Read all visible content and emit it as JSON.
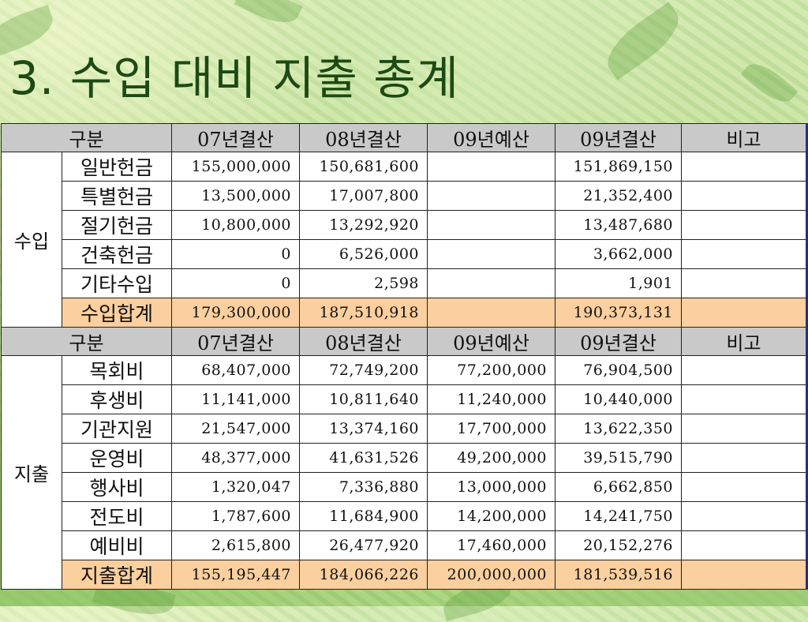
{
  "title": "3. 수입 대비 지출 총계",
  "header": [
    "구분",
    "07년결산",
    "08년결산",
    "09년예산",
    "09년결산",
    "비고"
  ],
  "income": {
    "group_label": "수입",
    "rows": [
      {
        "label": "일반헌금",
        "v07": "155,000,000",
        "v08": "150,681,600",
        "b09": "",
        "v09": "151,869,150",
        "note": ""
      },
      {
        "label": "특별헌금",
        "v07": "13,500,000",
        "v08": "17,007,800",
        "b09": "",
        "v09": "21,352,400",
        "note": ""
      },
      {
        "label": "절기헌금",
        "v07": "10,800,000",
        "v08": "13,292,920",
        "b09": "",
        "v09": "13,487,680",
        "note": ""
      },
      {
        "label": "건축헌금",
        "v07": "0",
        "v08": "6,526,000",
        "b09": "",
        "v09": "3,662,000",
        "note": ""
      },
      {
        "label": "기타수입",
        "v07": "0",
        "v08": "2,598",
        "b09": "",
        "v09": "1,901",
        "note": ""
      }
    ],
    "total": {
      "label": "수입합계",
      "v07": "179,300,000",
      "v08": "187,510,918",
      "b09": "",
      "v09": "190,373,131",
      "note": ""
    }
  },
  "expense": {
    "group_label": "지출",
    "rows": [
      {
        "label": "목회비",
        "v07": "68,407,000",
        "v08": "72,749,200",
        "b09": "77,200,000",
        "v09": "76,904,500",
        "note": ""
      },
      {
        "label": "후생비",
        "v07": "11,141,000",
        "v08": "10,811,640",
        "b09": "11,240,000",
        "v09": "10,440,000",
        "note": ""
      },
      {
        "label": "기관지원",
        "v07": "21,547,000",
        "v08": "13,374,160",
        "b09": "17,700,000",
        "v09": "13,622,350",
        "note": ""
      },
      {
        "label": "운영비",
        "v07": "48,377,000",
        "v08": "41,631,526",
        "b09": "49,200,000",
        "v09": "39,515,790",
        "note": ""
      },
      {
        "label": "행사비",
        "v07": "1,320,047",
        "v08": "7,336,880",
        "b09": "13,000,000",
        "v09": "6,662,850",
        "note": ""
      },
      {
        "label": "전도비",
        "v07": "1,787,600",
        "v08": "11,684,900",
        "b09": "14,200,000",
        "v09": "14,241,750",
        "note": ""
      },
      {
        "label": "예비비",
        "v07": "2,615,800",
        "v08": "26,477,920",
        "b09": "17,460,000",
        "v09": "20,152,276",
        "note": ""
      }
    ],
    "total": {
      "label": "지출합계",
      "v07": "155,195,447",
      "v08": "184,066,226",
      "b09": "200,000,000",
      "v09": "181,539,516",
      "note": ""
    }
  },
  "colors": {
    "header_bg": "#c9c9c9",
    "total_bg": "#fbcf9e",
    "title": "#1d4a14"
  }
}
